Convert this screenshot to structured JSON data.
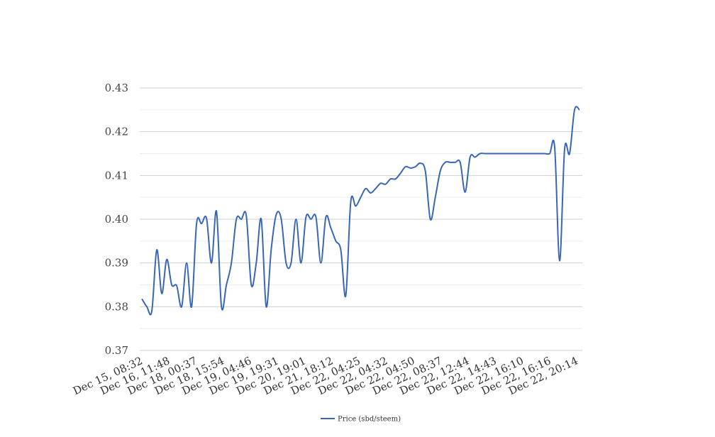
{
  "chart_data": {
    "type": "line",
    "title": "",
    "xlabel": "",
    "ylabel": "",
    "ylim": [
      0.37,
      0.43
    ],
    "y_ticks": [
      "0.37",
      "0.38",
      "0.39",
      "0.40",
      "0.41",
      "0.42",
      "0.43"
    ],
    "x_tick_labels": [
      "Dec 15, 08:32",
      "Dec 16, 11:48",
      "Dec 18, 00:37",
      "Dec 18, 15:54",
      "Dec 19, 04:46",
      "Dec 19, 19:31",
      "Dec 20, 19:01",
      "Dec 21, 18:12",
      "Dec 22, 04:25",
      "Dec 22, 04:32",
      "Dec 22, 04:50",
      "Dec 22, 08:37",
      "Dec 22, 12:44",
      "Dec 22, 14:43",
      "Dec 22, 16:10",
      "Dec 22, 16:16",
      "Dec 22, 20:14"
    ],
    "grid": true,
    "legend_position": "bottom",
    "series": [
      {
        "name": "Price (sbd/steem)",
        "color": "#3a66b8",
        "values": [
          0.3818,
          0.38,
          0.379,
          0.393,
          0.383,
          0.3908,
          0.385,
          0.3848,
          0.38,
          0.39,
          0.38,
          0.399,
          0.399,
          0.4002,
          0.39,
          0.4018,
          0.38,
          0.385,
          0.39,
          0.4,
          0.4,
          0.4008,
          0.385,
          0.39,
          0.4,
          0.38,
          0.393,
          0.401,
          0.4002,
          0.39,
          0.39,
          0.4,
          0.39,
          0.4005,
          0.4,
          0.4005,
          0.39,
          0.4005,
          0.398,
          0.395,
          0.393,
          0.3825,
          0.404,
          0.403,
          0.405,
          0.407,
          0.406,
          0.407,
          0.4082,
          0.408,
          0.4092,
          0.4092,
          0.4105,
          0.412,
          0.4117,
          0.412,
          0.4128,
          0.411,
          0.4,
          0.405,
          0.411,
          0.413,
          0.413,
          0.413,
          0.413,
          0.4062,
          0.4142,
          0.4142,
          0.415,
          0.415,
          0.415,
          0.415,
          0.415,
          0.415,
          0.415,
          0.415,
          0.415,
          0.415,
          0.415,
          0.415,
          0.415,
          0.415,
          0.415,
          0.4165,
          0.3905,
          0.416,
          0.415,
          0.425,
          0.425
        ]
      }
    ]
  }
}
